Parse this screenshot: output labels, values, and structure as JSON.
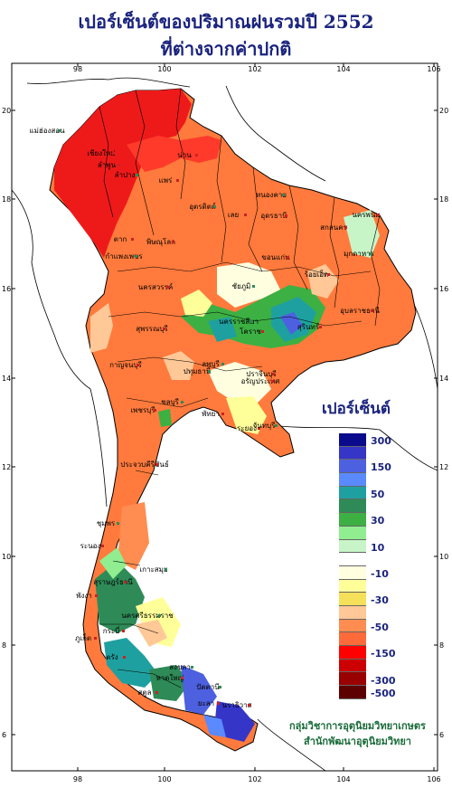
{
  "title": {
    "line1": "เปอร์เซ็นต์ของปริมาณฝนรวมปี 2552",
    "line2": "ที่ต่างจากค่าปกติ"
  },
  "axes": {
    "x_ticks": [
      "98",
      "100",
      "102",
      "104",
      "106"
    ],
    "y_ticks": [
      "20",
      "18",
      "16",
      "14",
      "12",
      "10",
      "8",
      "6"
    ]
  },
  "legend": {
    "title": "เปอร์เซ็นต์",
    "items": [
      {
        "label": "300",
        "color": "#0a0a8c"
      },
      {
        "label": "",
        "color": "#3535c8"
      },
      {
        "label": "150",
        "color": "#4d60e0"
      },
      {
        "label": "",
        "color": "#5a8aff"
      },
      {
        "label": "50",
        "color": "#1fa0a0"
      },
      {
        "label": "",
        "color": "#2e8b57"
      },
      {
        "label": "30",
        "color": "#3cb043"
      },
      {
        "label": "",
        "color": "#90ee90"
      },
      {
        "label": "10",
        "color": "#c8f5c8"
      },
      {
        "label": "",
        "color": "#ffffff"
      },
      {
        "label": "-10",
        "color": "#ffffe0"
      },
      {
        "label": "",
        "color": "#ffff99"
      },
      {
        "label": "-30",
        "color": "#f5e05a"
      },
      {
        "label": "",
        "color": "#ffc896"
      },
      {
        "label": "-50",
        "color": "#ff8c50"
      },
      {
        "label": "",
        "color": "#ff6a3a"
      },
      {
        "label": "-150",
        "color": "#ff0000"
      },
      {
        "label": "",
        "color": "#cc0000"
      },
      {
        "label": "-300",
        "color": "#990000"
      },
      {
        "label": "-500",
        "color": "#5c0000"
      }
    ]
  },
  "provinces": [
    {
      "name": "แม่ฮ่องสอน"
    },
    {
      "name": "เชียงใหม่"
    },
    {
      "name": "ลำพูน"
    },
    {
      "name": "ลำปาง"
    },
    {
      "name": "แพร่"
    },
    {
      "name": "น่าน"
    },
    {
      "name": "อุตรดิตถ์"
    },
    {
      "name": "ตาก"
    },
    {
      "name": "พิษณุโลก"
    },
    {
      "name": "กำแพงเพชร"
    },
    {
      "name": "เลย"
    },
    {
      "name": "อุดรธานี"
    },
    {
      "name": "หนองคาย"
    },
    {
      "name": "นครพนม"
    },
    {
      "name": "สกลนคร"
    },
    {
      "name": "มุกดาหาร"
    },
    {
      "name": "ขอนแก่น"
    },
    {
      "name": "ร้อยเอ็ด"
    },
    {
      "name": "ชัยภูมิ"
    },
    {
      "name": "อุบลราชธานี"
    },
    {
      "name": "นครสวรรค์"
    },
    {
      "name": "นครราชสีมา"
    },
    {
      "name": "โคราช"
    },
    {
      "name": "สุรินทร์"
    },
    {
      "name": "ลพบุรี"
    },
    {
      "name": "สุพรรณบุรี"
    },
    {
      "name": "กาญจนบุรี"
    },
    {
      "name": "ปทุมธานี"
    },
    {
      "name": "ปราจีนบุรี"
    },
    {
      "name": "อรัญประเทศ"
    },
    {
      "name": "ชลบุรี"
    },
    {
      "name": "พัทยา"
    },
    {
      "name": "ระยอง"
    },
    {
      "name": "จันทบุรี"
    },
    {
      "name": "เพชรบุรี"
    },
    {
      "name": "ประจวบคีรีขันธ์"
    },
    {
      "name": "ชุมพร"
    },
    {
      "name": "ระนอง"
    },
    {
      "name": "สุราษฎร์ธานี"
    },
    {
      "name": "เกาะสมุย"
    },
    {
      "name": "พังงา"
    },
    {
      "name": "ภูเก็ต"
    },
    {
      "name": "นครศรีธรรมราช"
    },
    {
      "name": "กระบี่"
    },
    {
      "name": "ตรัง"
    },
    {
      "name": "สงขลา"
    },
    {
      "name": "หาดใหญ่"
    },
    {
      "name": "สตูล"
    },
    {
      "name": "ปัตตานี"
    },
    {
      "name": "ยะลา"
    },
    {
      "name": "นราธิวาส"
    }
  ],
  "credit": {
    "line1": "กลุ่มวิชาการอุตุนิยมวิทยาเกษตร",
    "line2": "สำนักพัฒนาอุตุนิยมวิทยา"
  },
  "colors": {
    "title": "#1a237e",
    "legend_text": "#1a237e",
    "credit_text": "#1a6b3a"
  }
}
